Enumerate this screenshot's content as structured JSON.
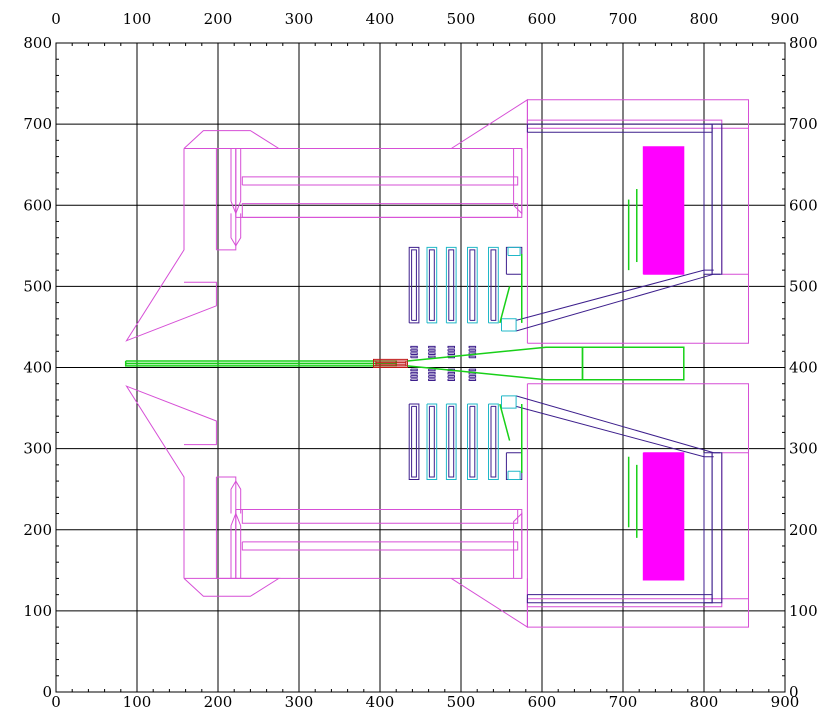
{
  "axes": {
    "x_range": [
      0,
      900
    ],
    "y_range": [
      0,
      800
    ],
    "x_ticks": [
      "0",
      "100",
      "200",
      "300",
      "400",
      "500",
      "600",
      "700",
      "800",
      "900"
    ],
    "y_ticks": [
      "0",
      "100",
      "200",
      "300",
      "400",
      "500",
      "600",
      "700",
      "800"
    ],
    "grid": true,
    "tick_labels_on": [
      "top",
      "bottom",
      "left",
      "right"
    ]
  },
  "colors": {
    "magenta_outline": "#d64fd6",
    "magenta_fill": "#ff00ff",
    "cyan": "#20b8c8",
    "purple": "#3d1f8c",
    "green": "#18d018",
    "red": "#c01818",
    "grid": "#000000"
  }
}
